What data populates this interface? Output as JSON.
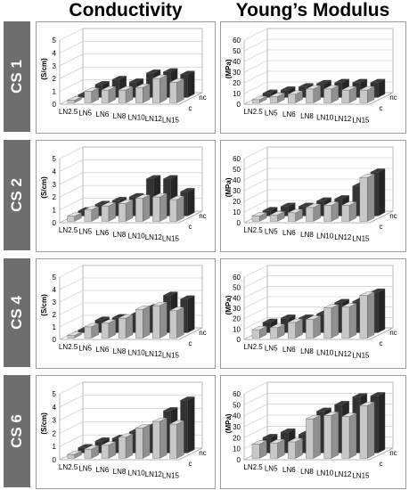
{
  "columns": [
    "Conductivity",
    "Young’s Modulus"
  ],
  "rows": [
    "CS 1",
    "CS 2",
    "CS 4",
    "CS 6"
  ],
  "colors": {
    "nc": "#333333",
    "c": "#c8c8c8",
    "frame": "#9a9a9a",
    "rowlabel_bg": "#6e6e6e"
  },
  "chart_data": [
    {
      "type": "bar",
      "panel": "CS 1 Conductivity",
      "ylabel": "(S/cm)",
      "ylim": [
        0,
        5
      ],
      "yticks": [
        0,
        1,
        2,
        3,
        4,
        5
      ],
      "categories": [
        "LN2.5",
        "LN5",
        "LN6",
        "LN8",
        "LN10",
        "LN12",
        "LN15"
      ],
      "depth_labels": [
        "nc",
        "c"
      ],
      "series": [
        {
          "name": "nc",
          "values": [
            0.2,
            1.0,
            1.4,
            1.2,
            1.9,
            2.0,
            1.8
          ]
        },
        {
          "name": "c",
          "values": [
            0.2,
            0.9,
            1.0,
            1.0,
            1.2,
            1.9,
            1.6
          ]
        }
      ]
    },
    {
      "type": "bar",
      "panel": "CS 1 Young’s Modulus",
      "ylabel": "(MPa)",
      "ylim": [
        0,
        60
      ],
      "yticks": [
        0,
        10,
        20,
        30,
        40,
        50,
        60
      ],
      "categories": [
        "LN2.5",
        "LN5",
        "LN6",
        "LN8",
        "LN10",
        "LN12",
        "LN15"
      ],
      "depth_labels": [
        "nc",
        "c"
      ],
      "series": [
        {
          "name": "nc",
          "values": [
            4,
            7,
            10,
            13,
            14,
            14,
            14
          ]
        },
        {
          "name": "c",
          "values": [
            3,
            6,
            8,
            13,
            13,
            12,
            12
          ]
        }
      ]
    },
    {
      "type": "bar",
      "panel": "CS 2 Conductivity",
      "ylabel": "(S/cm)",
      "ylim": [
        0,
        5
      ],
      "yticks": [
        0,
        1,
        2,
        3,
        4,
        5
      ],
      "categories": [
        "LN2.5",
        "LN5",
        "LN6",
        "LN8",
        "LN10",
        "LN12",
        "LN15"
      ],
      "depth_labels": [
        "nc",
        "c"
      ],
      "series": [
        {
          "name": "nc",
          "values": [
            0.4,
            0.9,
            1.2,
            1.5,
            2.9,
            2.9,
            1.9
          ]
        },
        {
          "name": "c",
          "values": [
            0.4,
            0.9,
            1.2,
            1.4,
            1.8,
            1.9,
            1.7
          ]
        }
      ]
    },
    {
      "type": "bar",
      "panel": "CS 2 Young’s Modulus",
      "ylabel": "(MPa)",
      "ylim": [
        0,
        60
      ],
      "yticks": [
        0,
        10,
        20,
        30,
        40,
        50,
        60
      ],
      "categories": [
        "LN2.5",
        "LN5",
        "LN6",
        "LN8",
        "LN10",
        "LN12",
        "LN15"
      ],
      "depth_labels": [
        "nc",
        "c"
      ],
      "series": [
        {
          "name": "nc",
          "values": [
            5,
            9,
            9,
            14,
            16,
            28,
            41
          ]
        },
        {
          "name": "c",
          "values": [
            5,
            6,
            8,
            13,
            15,
            15,
            41
          ]
        }
      ]
    },
    {
      "type": "bar",
      "panel": "CS 4 Conductivity",
      "ylabel": "(S/cm)",
      "ylim": [
        0,
        5
      ],
      "yticks": [
        0,
        1,
        2,
        3,
        4,
        5
      ],
      "categories": [
        "LN2.5",
        "LN5",
        "LN6",
        "LN8",
        "LN10",
        "LN12",
        "LN15"
      ],
      "depth_labels": [
        "nc",
        "c"
      ],
      "series": [
        {
          "name": "nc",
          "values": [
            0.2,
            1.0,
            1.2,
            1.4,
            2.0,
            3.0,
            2.7
          ]
        },
        {
          "name": "c",
          "values": [
            0.2,
            0.9,
            1.2,
            1.6,
            2.3,
            2.6,
            2.2
          ]
        }
      ]
    },
    {
      "type": "bar",
      "panel": "CS 4 Young’s Modulus",
      "ylabel": "(MPa)",
      "ylim": [
        0,
        60
      ],
      "yticks": [
        0,
        10,
        20,
        30,
        40,
        50,
        60
      ],
      "categories": [
        "LN2.5",
        "LN5",
        "LN6",
        "LN8",
        "LN10",
        "LN12",
        "LN15"
      ],
      "depth_labels": [
        "nc",
        "c"
      ],
      "series": [
        {
          "name": "nc",
          "values": [
            10,
            14,
            14,
            18,
            29,
            30,
            39
          ]
        },
        {
          "name": "c",
          "values": [
            8,
            10,
            15,
            18,
            29,
            30,
            41
          ]
        }
      ]
    },
    {
      "type": "bar",
      "panel": "CS 6 Conductivity",
      "ylabel": "(S/cm)",
      "ylim": [
        0,
        5
      ],
      "yticks": [
        0,
        1,
        2,
        3,
        4,
        5
      ],
      "categories": [
        "LN2.5",
        "LN5",
        "LN6",
        "LN8",
        "LN10",
        "LN12",
        "LN15"
      ],
      "depth_labels": [
        "nc",
        "c"
      ],
      "series": [
        {
          "name": "nc",
          "values": [
            0.4,
            0.9,
            1.1,
            1.6,
            2.0,
            3.2,
            4.0
          ]
        },
        {
          "name": "c",
          "values": [
            0.3,
            0.7,
            1.0,
            1.6,
            2.3,
            2.8,
            2.6
          ]
        }
      ]
    },
    {
      "type": "bar",
      "panel": "CS 6 Young’s Modulus",
      "ylabel": "(MPa)",
      "ylim": [
        0,
        60
      ],
      "yticks": [
        0,
        10,
        20,
        30,
        40,
        50,
        60
      ],
      "categories": [
        "LN2.5",
        "LN5",
        "LN6",
        "LN8",
        "LN10",
        "LN12",
        "LN15"
      ],
      "depth_labels": [
        "nc",
        "c"
      ],
      "series": [
        {
          "name": "nc",
          "values": [
            14,
            19,
            17,
            38,
            44,
            51,
            52
          ]
        },
        {
          "name": "c",
          "values": [
            13,
            14,
            15,
            36,
            39,
            38,
            48
          ]
        }
      ]
    }
  ]
}
